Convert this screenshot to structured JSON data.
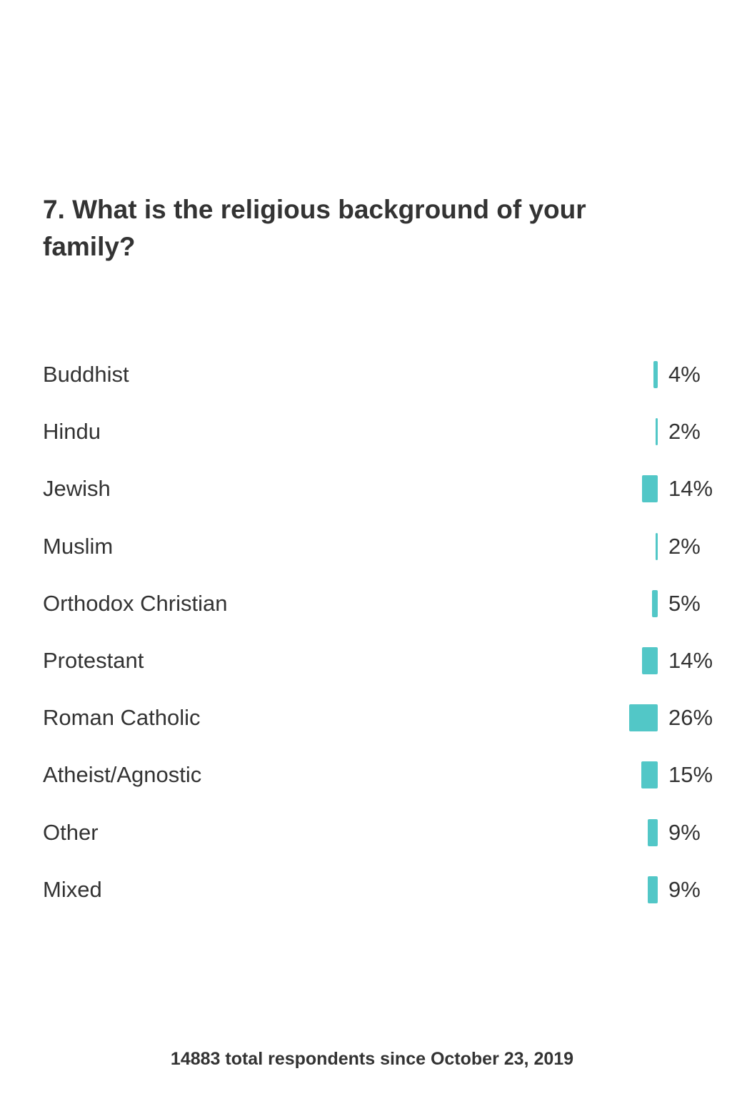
{
  "question": "7. What is the religious background of your family?",
  "chart_data": {
    "type": "bar",
    "orientation": "horizontal",
    "categories": [
      "Buddhist",
      "Hindu",
      "Jewish",
      "Muslim",
      "Orthodox Christian",
      "Protestant",
      "Roman Catholic",
      "Atheist/Agnostic",
      "Other",
      "Mixed"
    ],
    "values": [
      4,
      2,
      14,
      2,
      5,
      14,
      26,
      15,
      9,
      9
    ],
    "value_labels": [
      "4%",
      "2%",
      "14%",
      "2%",
      "5%",
      "14%",
      "26%",
      "15%",
      "9%",
      "9%"
    ],
    "unit": "%",
    "bar_color": "#52c7c7",
    "grid": false,
    "legend": "none"
  },
  "footer": "14883 total respondents since October 23, 2019"
}
